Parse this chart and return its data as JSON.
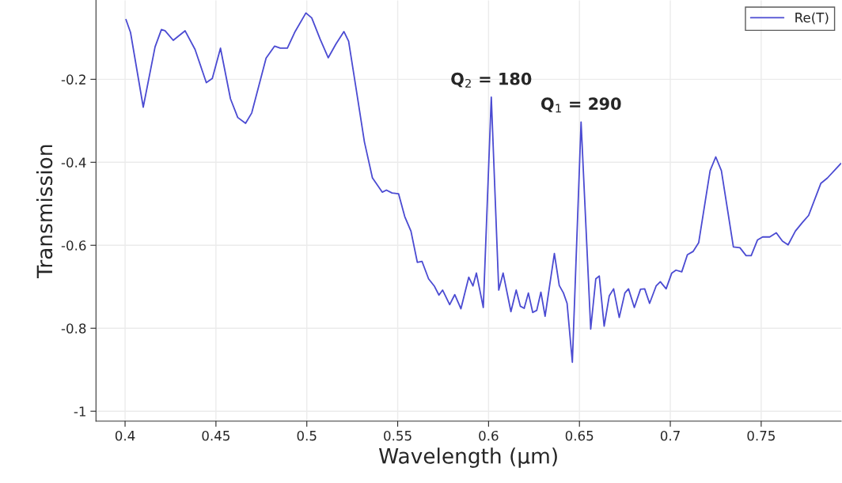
{
  "chart_data": {
    "type": "line",
    "xlabel": "Wavelength (µm)",
    "ylabel": "Transmission",
    "xlim": [
      0.384,
      0.794
    ],
    "xticks": [
      0.4,
      0.45,
      0.5,
      0.55,
      0.6,
      0.65,
      0.7,
      0.75
    ],
    "ylim": [
      -1.024,
      -0.01
    ],
    "yticks": [
      -1,
      -0.8,
      -0.6,
      -0.4,
      -0.2
    ],
    "grid": true,
    "legend": "top right",
    "annotations": [
      {
        "text": "Q$_{2}$ = 180",
        "x": 0.6015,
        "y": -0.243
      },
      {
        "text": "Q$_{1}$ = 290",
        "x": 0.6509,
        "y": -0.303
      }
    ],
    "series": [
      {
        "name": "Re(T)",
        "color": "#4b4bd2",
        "x": [
          0.4005,
          0.403,
          0.41,
          0.4165,
          0.42,
          0.422,
          0.4265,
          0.433,
          0.4385,
          0.4447,
          0.448,
          0.4525,
          0.458,
          0.462,
          0.4663,
          0.4697,
          0.4776,
          0.4823,
          0.4854,
          0.4893,
          0.4933,
          0.4995,
          0.5027,
          0.5074,
          0.5118,
          0.516,
          0.5204,
          0.523,
          0.527,
          0.5317,
          0.5361,
          0.5415,
          0.5438,
          0.5469,
          0.5505,
          0.5539,
          0.5573,
          0.5608,
          0.5634,
          0.567,
          0.5701,
          0.5727,
          0.5747,
          0.5786,
          0.5814,
          0.5848,
          0.5891,
          0.5914,
          0.5933,
          0.5971,
          0.6015,
          0.6056,
          0.608,
          0.6123,
          0.6152,
          0.6175,
          0.6196,
          0.6219,
          0.6243,
          0.6265,
          0.6288,
          0.6311,
          0.6362,
          0.6389,
          0.6412,
          0.6432,
          0.6461,
          0.6509,
          0.6562,
          0.659,
          0.6609,
          0.6636,
          0.6664,
          0.6688,
          0.6719,
          0.675,
          0.677,
          0.6802,
          0.6836,
          0.6859,
          0.6886,
          0.6922,
          0.6945,
          0.6977,
          0.7008,
          0.7031,
          0.7063,
          0.7094,
          0.7125,
          0.7156,
          0.7219,
          0.725,
          0.7281,
          0.7347,
          0.7383,
          0.7417,
          0.7445,
          0.748,
          0.7508,
          0.7547,
          0.7583,
          0.7617,
          0.7648,
          0.7688,
          0.7727,
          0.7761,
          0.7828,
          0.7864,
          0.7938
        ],
        "values": [
          -0.056,
          -0.087,
          -0.267,
          -0.122,
          -0.08,
          -0.083,
          -0.106,
          -0.083,
          -0.128,
          -0.208,
          -0.198,
          -0.125,
          -0.247,
          -0.292,
          -0.306,
          -0.281,
          -0.149,
          -0.12,
          -0.125,
          -0.125,
          -0.087,
          -0.04,
          -0.052,
          -0.104,
          -0.148,
          -0.115,
          -0.085,
          -0.108,
          -0.219,
          -0.351,
          -0.4375,
          -0.472,
          -0.467,
          -0.474,
          -0.476,
          -0.531,
          -0.566,
          -0.641,
          -0.639,
          -0.681,
          -0.698,
          -0.72,
          -0.708,
          -0.743,
          -0.719,
          -0.753,
          -0.677,
          -0.698,
          -0.667,
          -0.75,
          -0.243,
          -0.708,
          -0.667,
          -0.76,
          -0.708,
          -0.747,
          -0.752,
          -0.715,
          -0.762,
          -0.757,
          -0.713,
          -0.771,
          -0.62,
          -0.697,
          -0.715,
          -0.74,
          -0.882,
          -0.303,
          -0.802,
          -0.681,
          -0.674,
          -0.795,
          -0.722,
          -0.705,
          -0.774,
          -0.715,
          -0.705,
          -0.75,
          -0.706,
          -0.705,
          -0.74,
          -0.698,
          -0.688,
          -0.705,
          -0.667,
          -0.66,
          -0.664,
          -0.623,
          -0.615,
          -0.594,
          -0.42,
          -0.387,
          -0.42,
          -0.604,
          -0.606,
          -0.625,
          -0.625,
          -0.587,
          -0.58,
          -0.58,
          -0.57,
          -0.59,
          -0.599,
          -0.566,
          -0.545,
          -0.528,
          -0.451,
          -0.438,
          -0.403
        ]
      }
    ]
  }
}
